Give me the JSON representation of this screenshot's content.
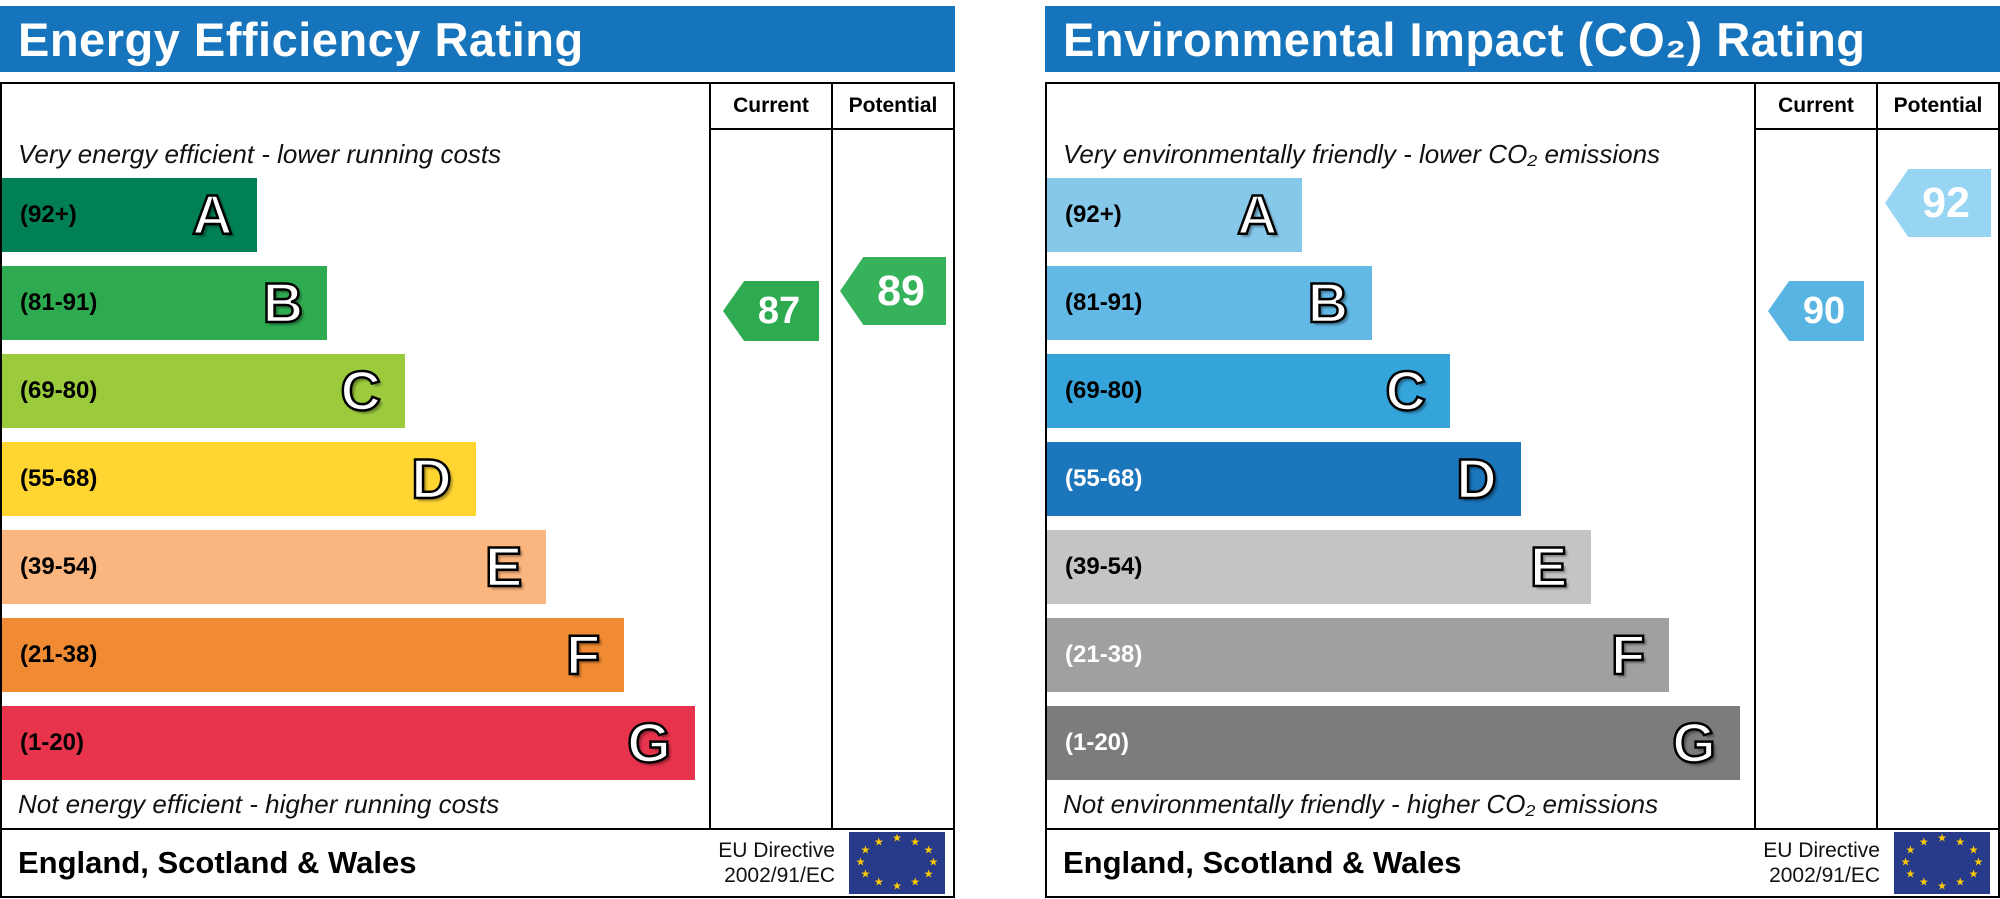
{
  "chart_data": [
    {
      "id": "energy-efficiency",
      "type": "bar",
      "title": "Energy Efficiency Rating",
      "header_color": "#1674bc",
      "columns": {
        "current": "Current",
        "potential": "Potential"
      },
      "top_caption": "Very energy efficient - lower running costs",
      "bottom_caption": "Not energy efficient - higher running costs",
      "bands": [
        {
          "letter": "A",
          "range": "(92+)",
          "color": "#008054",
          "label_color": "#000000",
          "width_pct": 36
        },
        {
          "letter": "B",
          "range": "(81-91)",
          "color": "#2eab51",
          "label_color": "#000000",
          "width_pct": 46
        },
        {
          "letter": "C",
          "range": "(69-80)",
          "color": "#9bca3d",
          "label_color": "#000000",
          "width_pct": 57
        },
        {
          "letter": "D",
          "range": "(55-68)",
          "color": "#ffd532",
          "label_color": "#000000",
          "width_pct": 67
        },
        {
          "letter": "E",
          "range": "(39-54)",
          "color": "#fbb57e",
          "label_color": "#000000",
          "width_pct": 77
        },
        {
          "letter": "F",
          "range": "(21-38)",
          "color": "#f08b33",
          "label_color": "#000000",
          "width_pct": 88
        },
        {
          "letter": "G",
          "range": "(1-20)",
          "color": "#e8334c",
          "label_color": "#000000",
          "width_pct": 98
        }
      ],
      "current": {
        "value": 87,
        "band": "B",
        "arrow_color": "#2eab51"
      },
      "potential": {
        "value": 89,
        "band": "B",
        "arrow_color": "#35b25a"
      },
      "footer": {
        "region": "England, Scotland & Wales",
        "directive_line1": "EU Directive",
        "directive_line2": "2002/91/EC",
        "flag_icon": "eu-flag",
        "flag_color": "#283a8a",
        "star_color": "#ffcc00"
      }
    },
    {
      "id": "environmental-impact",
      "type": "bar",
      "title": "Environmental Impact (CO₂) Rating",
      "header_color": "#1674bc",
      "columns": {
        "current": "Current",
        "potential": "Potential"
      },
      "top_caption": "Very environmentally friendly - lower CO₂ emissions",
      "bottom_caption": "Not environmentally friendly - higher CO₂ emissions",
      "bands": [
        {
          "letter": "A",
          "range": "(92+)",
          "color": "#86c8ea",
          "label_color": "#000000",
          "width_pct": 36
        },
        {
          "letter": "B",
          "range": "(81-91)",
          "color": "#62b9e6",
          "label_color": "#000000",
          "width_pct": 46
        },
        {
          "letter": "C",
          "range": "(69-80)",
          "color": "#35a4da",
          "label_color": "#000000",
          "width_pct": 57
        },
        {
          "letter": "D",
          "range": "(55-68)",
          "color": "#1b76bc",
          "label_color": "#ffffff",
          "width_pct": 67
        },
        {
          "letter": "E",
          "range": "(39-54)",
          "color": "#c4c4c4",
          "label_color": "#000000",
          "width_pct": 77
        },
        {
          "letter": "F",
          "range": "(21-38)",
          "color": "#a0a0a0",
          "label_color": "#ffffff",
          "width_pct": 88
        },
        {
          "letter": "G",
          "range": "(1-20)",
          "color": "#7c7c7c",
          "label_color": "#ffffff",
          "width_pct": 98
        }
      ],
      "current": {
        "value": 90,
        "band": "B",
        "arrow_color": "#58b4e3"
      },
      "potential": {
        "value": 92,
        "band": "A",
        "arrow_color": "#97d5f2"
      },
      "footer": {
        "region": "England, Scotland & Wales",
        "directive_line1": "EU Directive",
        "directive_line2": "2002/91/EC",
        "flag_icon": "eu-flag",
        "flag_color": "#283a8a",
        "star_color": "#ffcc00"
      }
    }
  ]
}
